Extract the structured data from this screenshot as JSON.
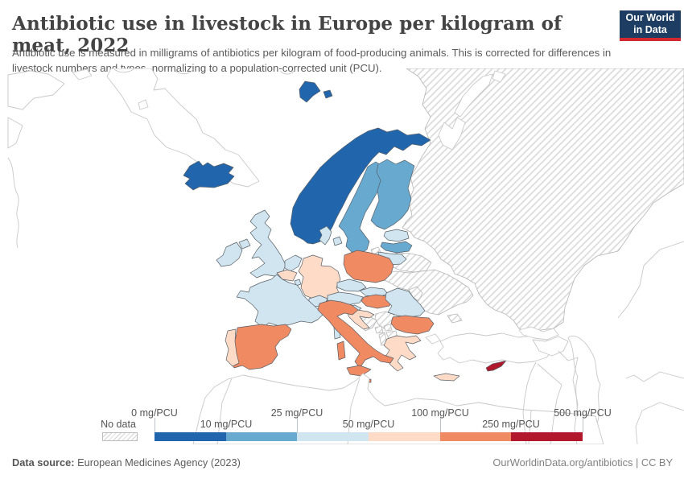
{
  "header": {
    "title": "Antibiotic use in livestock in Europe per kilogram of meat, 2022",
    "subtitle": "Antibiotic use is measured in milligrams of antibiotics per kilogram of food-producing animals. This is corrected for differences in livestock numbers and types, normalizing to a population-corrected unit (PCU).",
    "logo": {
      "line1": "Our World",
      "line2": "in Data"
    }
  },
  "legend": {
    "no_data_label": "No data",
    "unit": "mg/PCU",
    "ticks": [
      {
        "text": "0 mg/PCU",
        "row": 1
      },
      {
        "text": "10 mg/PCU",
        "row": 2
      },
      {
        "text": "25 mg/PCU",
        "row": 1
      },
      {
        "text": "50 mg/PCU",
        "row": 2
      },
      {
        "text": "100 mg/PCU",
        "row": 1
      },
      {
        "text": "250 mg/PCU",
        "row": 2
      },
      {
        "text": "500 mg/PCU",
        "row": 1
      }
    ],
    "colors": [
      "#2166ac",
      "#67a9cf",
      "#d1e5f0",
      "#fddbc7",
      "#ef8a62",
      "#b2182b"
    ]
  },
  "map": {
    "countries": [
      {
        "id": "iceland",
        "name": "Iceland",
        "bin": 0
      },
      {
        "id": "norway",
        "name": "Norway",
        "bin": 0
      },
      {
        "id": "sweden",
        "name": "Sweden",
        "bin": 1
      },
      {
        "id": "finland",
        "name": "Finland",
        "bin": 1
      },
      {
        "id": "latvia",
        "name": "Latvia",
        "bin": 1
      },
      {
        "id": "denmark",
        "name": "Denmark",
        "bin": 2
      },
      {
        "id": "estonia",
        "name": "Estonia",
        "bin": 2
      },
      {
        "id": "lithuania",
        "name": "Lithuania",
        "bin": 2
      },
      {
        "id": "united-kingdom",
        "name": "United Kingdom",
        "bin": 2
      },
      {
        "id": "ireland",
        "name": "Ireland",
        "bin": 2
      },
      {
        "id": "france",
        "name": "France",
        "bin": 2
      },
      {
        "id": "netherlands",
        "name": "Netherlands",
        "bin": 2
      },
      {
        "id": "luxembourg",
        "name": "Luxembourg",
        "bin": 2
      },
      {
        "id": "czechia",
        "name": "Czechia",
        "bin": 2
      },
      {
        "id": "slovakia",
        "name": "Slovakia",
        "bin": 2
      },
      {
        "id": "austria",
        "name": "Austria",
        "bin": 2
      },
      {
        "id": "switzerland",
        "name": "Switzerland",
        "bin": 2
      },
      {
        "id": "slovenia",
        "name": "Slovenia",
        "bin": 2
      },
      {
        "id": "romania",
        "name": "Romania",
        "bin": 2
      },
      {
        "id": "germany",
        "name": "Germany",
        "bin": 3
      },
      {
        "id": "belgium",
        "name": "Belgium",
        "bin": 3
      },
      {
        "id": "portugal",
        "name": "Portugal",
        "bin": 3
      },
      {
        "id": "croatia",
        "name": "Croatia",
        "bin": 3
      },
      {
        "id": "greece",
        "name": "Greece",
        "bin": 3
      },
      {
        "id": "spain",
        "name": "Spain",
        "bin": 4
      },
      {
        "id": "italy",
        "name": "Italy",
        "bin": 4
      },
      {
        "id": "poland",
        "name": "Poland",
        "bin": 4
      },
      {
        "id": "hungary",
        "name": "Hungary",
        "bin": 4
      },
      {
        "id": "bulgaria",
        "name": "Bulgaria",
        "bin": 4
      },
      {
        "id": "malta",
        "name": "Malta",
        "bin": 4
      },
      {
        "id": "cyprus",
        "name": "Cyprus",
        "bin": 5
      },
      {
        "id": "russia",
        "name": "Russia",
        "bin": "no-data"
      },
      {
        "id": "belarus",
        "name": "Belarus",
        "bin": "no-data"
      },
      {
        "id": "ukraine",
        "name": "Ukraine",
        "bin": "no-data"
      },
      {
        "id": "moldova",
        "name": "Moldova",
        "bin": "no-data"
      },
      {
        "id": "serbia",
        "name": "Serbia",
        "bin": "no-data"
      },
      {
        "id": "bosnia",
        "name": "Bosnia and Herzegovina",
        "bin": "no-data"
      },
      {
        "id": "montenegro",
        "name": "Montenegro",
        "bin": "no-data"
      },
      {
        "id": "kosovo",
        "name": "Kosovo",
        "bin": "no-data"
      },
      {
        "id": "north-macedonia",
        "name": "North Macedonia",
        "bin": "no-data"
      },
      {
        "id": "albania",
        "name": "Albania",
        "bin": "no-data"
      }
    ]
  },
  "chart_data": {
    "type": "choropleth",
    "title": "Antibiotic use in livestock in Europe per kilogram of meat, 2022",
    "unit": "mg/PCU",
    "legend_position": "bottom",
    "bins": [
      {
        "range": "0-10 mg/PCU",
        "color": "#2166ac"
      },
      {
        "range": "10-25 mg/PCU",
        "color": "#67a9cf"
      },
      {
        "range": "25-50 mg/PCU",
        "color": "#d1e5f0"
      },
      {
        "range": "50-100 mg/PCU",
        "color": "#fddbc7"
      },
      {
        "range": "100-250 mg/PCU",
        "color": "#ef8a62"
      },
      {
        "range": "250-500 mg/PCU",
        "color": "#b2182b"
      },
      {
        "range": "No data",
        "color": "hatched"
      }
    ],
    "values_by_bin": {
      "0-10 mg/PCU": [
        "Iceland",
        "Norway"
      ],
      "10-25 mg/PCU": [
        "Sweden",
        "Finland",
        "Latvia"
      ],
      "25-50 mg/PCU": [
        "United Kingdom",
        "Ireland",
        "France",
        "Netherlands",
        "Luxembourg",
        "Denmark",
        "Estonia",
        "Lithuania",
        "Czechia",
        "Slovakia",
        "Austria",
        "Switzerland",
        "Slovenia",
        "Romania"
      ],
      "50-100 mg/PCU": [
        "Germany",
        "Belgium",
        "Portugal",
        "Croatia",
        "Greece"
      ],
      "100-250 mg/PCU": [
        "Spain",
        "Italy",
        "Poland",
        "Hungary",
        "Bulgaria",
        "Malta"
      ],
      "250-500 mg/PCU": [
        "Cyprus"
      ],
      "No data": [
        "Russia",
        "Belarus",
        "Ukraine",
        "Moldova",
        "Serbia",
        "Bosnia and Herzegovina",
        "Montenegro",
        "Kosovo",
        "North Macedonia",
        "Albania"
      ]
    }
  },
  "footer": {
    "source_label": "Data source:",
    "source_text": " European Medicines Agency (2023)",
    "right_text": "OurWorldinData.org/antibiotics | CC BY"
  }
}
